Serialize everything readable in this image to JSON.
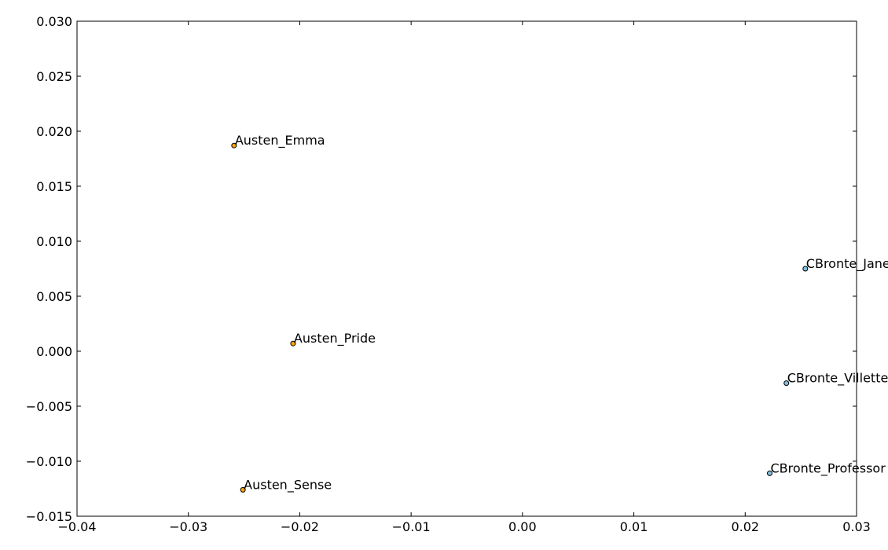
{
  "chart_data": {
    "type": "scatter",
    "title": "",
    "xlabel": "",
    "ylabel": "",
    "xlim": [
      -0.04,
      0.03
    ],
    "ylim": [
      -0.015,
      0.03
    ],
    "grid": false,
    "x_ticks": [
      -0.04,
      -0.03,
      -0.02,
      -0.01,
      0.0,
      0.01,
      0.02,
      0.03
    ],
    "x_tick_labels": [
      "−0.04",
      "−0.03",
      "−0.02",
      "−0.01",
      "0.00",
      "0.01",
      "0.02",
      "0.03"
    ],
    "y_ticks": [
      -0.015,
      -0.01,
      -0.005,
      0.0,
      0.005,
      0.01,
      0.015,
      0.02,
      0.025,
      0.03
    ],
    "y_tick_labels": [
      "−0.015",
      "−0.010",
      "−0.005",
      "0.000",
      "0.005",
      "0.010",
      "0.015",
      "0.020",
      "0.025",
      "0.030"
    ],
    "colors": {
      "austen": "#ffa500",
      "bronte": "#7fbfdf"
    },
    "points": [
      {
        "label": "Austen_Emma",
        "x": -0.0259,
        "y": 0.0187,
        "group": "austen"
      },
      {
        "label": "Austen_Pride",
        "x": -0.0206,
        "y": 0.0007,
        "group": "austen"
      },
      {
        "label": "Austen_Sense",
        "x": -0.0251,
        "y": -0.0126,
        "group": "austen"
      },
      {
        "label": "CBronte_Jane",
        "x": 0.0254,
        "y": 0.0075,
        "group": "bronte"
      },
      {
        "label": "CBronte_Villette",
        "x": 0.0237,
        "y": -0.0029,
        "group": "bronte"
      },
      {
        "label": "CBronte_Professor",
        "x": 0.0222,
        "y": -0.0111,
        "group": "bronte"
      }
    ]
  }
}
